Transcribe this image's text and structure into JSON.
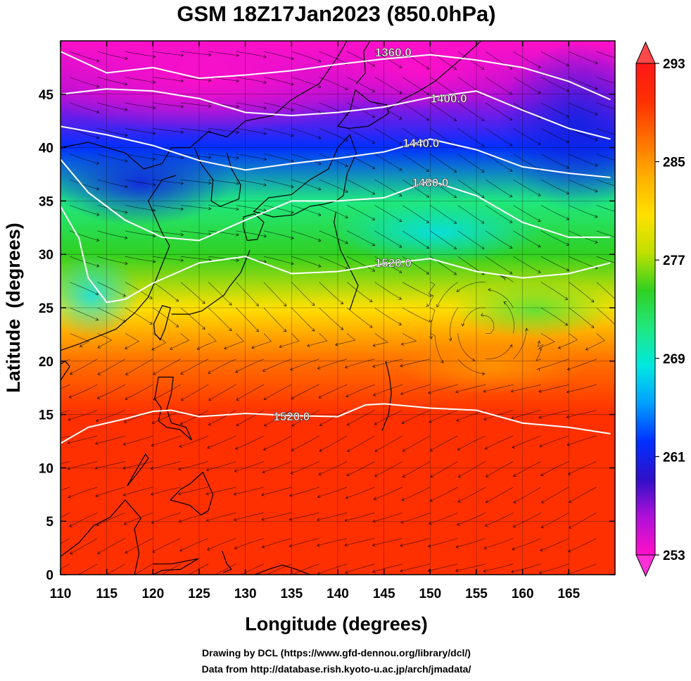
{
  "title": "GSM 18Z17Jan2023 (850.0hPa)",
  "xlabel": "Longitude (degrees)",
  "ylabel": "Latitude  (degrees)",
  "x_ticks": [
    "110",
    "115",
    "120",
    "125",
    "130",
    "135",
    "140",
    "145",
    "150",
    "155",
    "160",
    "165"
  ],
  "y_ticks": [
    "0",
    "5",
    "10",
    "15",
    "20",
    "25",
    "30",
    "35",
    "40",
    "45"
  ],
  "colorbar": {
    "ticks": [
      "293",
      "285",
      "277",
      "269",
      "261",
      "253"
    ],
    "min": 253,
    "max": 293,
    "colors": [
      "#ff10c8",
      "#b010d8",
      "#3010c8",
      "#0030ff",
      "#00a0ff",
      "#00e8e0",
      "#20e880",
      "#30d020",
      "#c0e000",
      "#ffe000",
      "#ffb000",
      "#ff7000",
      "#ff3000",
      "#ff1818"
    ]
  },
  "contour_labels": [
    "1360.0",
    "1400.0",
    "1440.0",
    "1480.0",
    "1520.0",
    "1520.0"
  ],
  "credits": {
    "line1": "Drawing by DCL (https://www.gfd-dennou.org/library/dcl/)",
    "line2": "Data from http://database.rish.kyoto-u.ac.jp/arch/jmadata/"
  },
  "chart_data": {
    "type": "heatmap",
    "title": "GSM 18Z17Jan2023 (850.0hPa)",
    "xlabel": "Longitude (degrees)",
    "ylabel": "Latitude  (degrees)",
    "xlim": [
      110,
      170
    ],
    "ylim": [
      0,
      50
    ],
    "grid": true,
    "colorbar_range": [
      253,
      293
    ],
    "colorbar_ticks": [
      253,
      261,
      269,
      277,
      285,
      293
    ],
    "field_zonal_profile": [
      {
        "lat": 0,
        "value": 290
      },
      {
        "lat": 10,
        "value": 290
      },
      {
        "lat": 15,
        "value": 289
      },
      {
        "lat": 20,
        "value": 286
      },
      {
        "lat": 25,
        "value": 280
      },
      {
        "lat": 30,
        "value": 275
      },
      {
        "lat": 35,
        "value": 270
      },
      {
        "lat": 40,
        "value": 262
      },
      {
        "lat": 45,
        "value": 256
      },
      {
        "lat": 50,
        "value": 254
      }
    ],
    "contours": [
      {
        "level": 1360.0,
        "points": [
          [
            110,
            49
          ],
          [
            115,
            47
          ],
          [
            120,
            47.5
          ],
          [
            125,
            46.5
          ],
          [
            130,
            46.8
          ],
          [
            135,
            47.2
          ],
          [
            140,
            47.8
          ],
          [
            145,
            48.3
          ],
          [
            150,
            48.7
          ],
          [
            155,
            48.2
          ],
          [
            160,
            47.5
          ],
          [
            165,
            46.2
          ],
          [
            169.5,
            44.5
          ]
        ]
      },
      {
        "level": 1400.0,
        "points": [
          [
            110,
            45
          ],
          [
            115,
            45.5
          ],
          [
            120,
            45.3
          ],
          [
            125,
            44.6
          ],
          [
            130,
            43.3
          ],
          [
            135,
            43
          ],
          [
            140,
            43.3
          ],
          [
            145,
            43.8
          ],
          [
            150,
            44.7
          ],
          [
            155,
            45.3
          ],
          [
            160,
            43.5
          ],
          [
            165,
            41.8
          ],
          [
            169.5,
            40.8
          ]
        ]
      },
      {
        "level": 1440.0,
        "points": [
          [
            110,
            42
          ],
          [
            115,
            41.2
          ],
          [
            120,
            40.2
          ],
          [
            125,
            38.8
          ],
          [
            130,
            37.9
          ],
          [
            135,
            38.5
          ],
          [
            140,
            39
          ],
          [
            145,
            39.6
          ],
          [
            150,
            40.8
          ],
          [
            155,
            39.8
          ],
          [
            160,
            38.2
          ],
          [
            165,
            37.6
          ],
          [
            169.5,
            37.2
          ]
        ]
      },
      {
        "level": 1480.0,
        "points": [
          [
            110,
            38.9
          ],
          [
            113,
            35.8
          ],
          [
            117,
            33.2
          ],
          [
            121,
            31.6
          ],
          [
            125,
            31.3
          ],
          [
            130,
            33.2
          ],
          [
            135,
            35
          ],
          [
            140,
            35
          ],
          [
            145,
            35.3
          ],
          [
            150,
            36.9
          ],
          [
            155,
            35.5
          ],
          [
            160,
            33
          ],
          [
            165,
            31.6
          ],
          [
            169.5,
            31.6
          ]
        ]
      },
      {
        "level": 1520.0,
        "points": [
          [
            110,
            34.5
          ],
          [
            112,
            31.5
          ],
          [
            113,
            27.8
          ],
          [
            115,
            25.5
          ],
          [
            117,
            25.8
          ],
          [
            120,
            27.3
          ],
          [
            125,
            29.2
          ],
          [
            130,
            29.8
          ],
          [
            135,
            28.2
          ],
          [
            140,
            28.4
          ],
          [
            145,
            29.1
          ],
          [
            150,
            29.6
          ],
          [
            155,
            28.4
          ],
          [
            160,
            27.8
          ],
          [
            165,
            28.2
          ],
          [
            169.5,
            29.2
          ]
        ]
      },
      {
        "level": 1520.0,
        "points": [
          [
            110,
            12.3
          ],
          [
            113,
            13.8
          ],
          [
            117,
            14.6
          ],
          [
            120,
            15.3
          ],
          [
            122,
            15.4
          ],
          [
            125,
            14.8
          ],
          [
            130,
            15.1
          ],
          [
            135,
            14.9
          ],
          [
            140,
            14.8
          ],
          [
            143,
            15.9
          ],
          [
            145,
            16
          ],
          [
            150,
            15.6
          ],
          [
            155,
            15.4
          ],
          [
            160,
            14.2
          ],
          [
            165,
            13.8
          ],
          [
            169.5,
            13.2
          ]
        ]
      }
    ]
  }
}
